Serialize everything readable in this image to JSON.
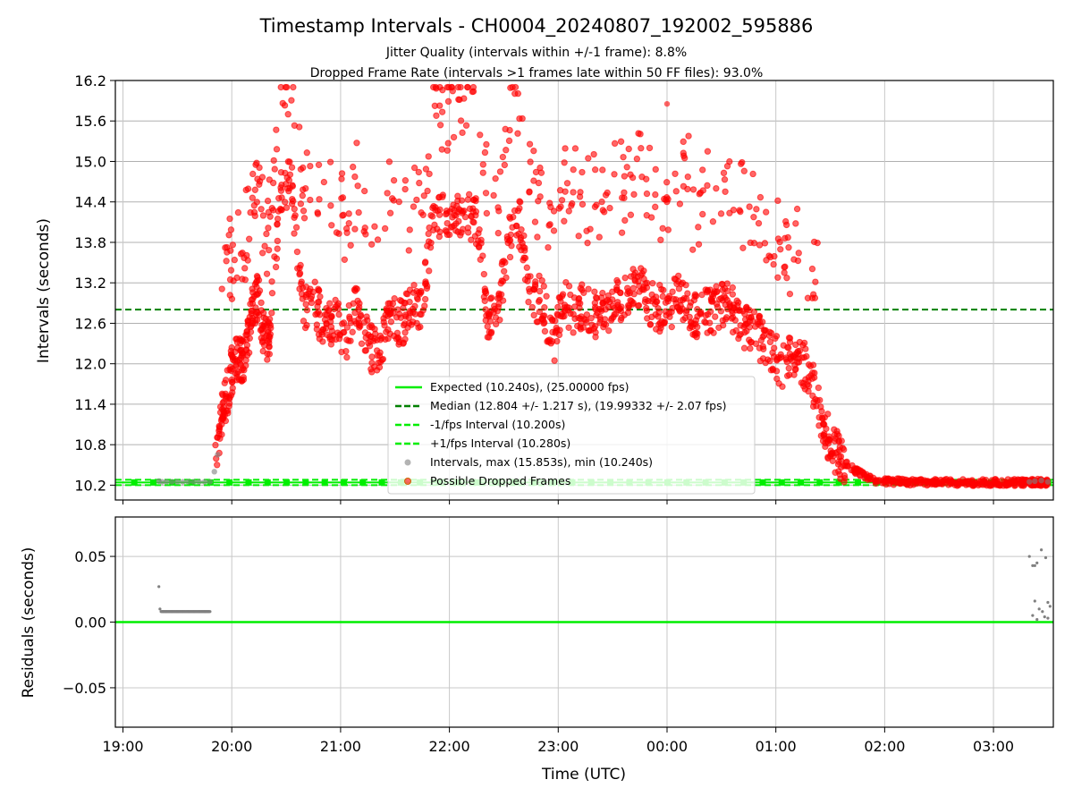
{
  "chart_data": [
    {
      "type": "scatter",
      "title": "Timestamp Intervals - CH0004_20240807_192002_595886",
      "subtitle_lines": [
        "Jitter Quality (intervals within +/-1 frame): 8.8%",
        "Dropped Frame Rate (intervals >1 frames late within 50 FF files): 93.0%"
      ],
      "ylabel": "Intervals (seconds)",
      "xlim": [
        -0.07,
        8.55
      ],
      "ylim": [
        9.98,
        16.2
      ],
      "yticks": [
        10.2,
        10.8,
        11.4,
        12.0,
        12.6,
        13.2,
        13.8,
        14.4,
        15.0,
        15.6,
        16.2
      ],
      "ytick_labels": [
        "10.2",
        "10.8",
        "11.4",
        "12.0",
        "12.6",
        "13.2",
        "13.8",
        "14.4",
        "15.0",
        "15.6",
        "16.2"
      ],
      "grid": true,
      "legend_position": "lower-center",
      "legend": [
        "Expected (10.240s), (25.00000 fps)",
        "Median (12.804 +/- 1.217 s), (19.99332 +/- 2.07 fps)",
        "-1/fps Interval (10.200s)",
        "+1/fps Interval (10.280s)",
        "Intervals, max (15.853s), min (10.240s)",
        "Possible Dropped Frames"
      ],
      "lines": [
        {
          "name": "Expected (10.240s), (25.00000 fps)",
          "y": 10.24,
          "color": "#00ee00",
          "style": "solid"
        },
        {
          "name": "Median (12.804 +/- 1.217 s), (19.99332 +/- 2.07 fps)",
          "y": 12.804,
          "color": "#008000",
          "style": "dashed"
        },
        {
          "name": "-1/fps Interval (10.200s)",
          "y": 10.2,
          "color": "#00ee00",
          "style": "dashed"
        },
        {
          "name": "+1/fps Interval (10.280s)",
          "y": 10.28,
          "color": "#00ee00",
          "style": "dashed"
        }
      ],
      "normal_intervals": {
        "name": "Intervals, max (15.853s), min (10.240s)",
        "color": "#808080",
        "x": [
          0.33,
          0.36,
          0.4,
          0.45,
          0.5,
          0.55,
          0.6,
          0.65,
          0.7,
          0.75,
          0.8,
          0.84,
          0.87,
          8.33,
          8.38,
          8.44,
          8.5
        ],
        "y": [
          10.26,
          10.25,
          10.25,
          10.25,
          10.25,
          10.25,
          10.25,
          10.25,
          10.25,
          10.25,
          10.25,
          10.4,
          10.65,
          10.25,
          10.26,
          10.27,
          10.25
        ]
      },
      "dropped_frames": {
        "name": "Possible Dropped Frames",
        "color": "#ff0000",
        "centerline_x_hours": [
          0.85,
          0.9,
          0.95,
          1.0,
          1.05,
          1.1,
          1.15,
          1.2,
          1.25,
          1.3,
          1.35,
          1.45,
          1.55,
          1.65,
          1.75,
          1.85,
          1.95,
          2.05,
          2.15,
          2.25,
          2.35,
          2.45,
          2.55,
          2.65,
          2.75,
          2.85,
          2.95,
          3.05,
          3.15,
          3.25,
          3.35,
          3.45,
          3.55,
          3.65,
          3.75,
          3.85,
          3.95,
          4.05,
          4.15,
          4.25,
          4.35,
          4.45,
          4.55,
          4.65,
          4.75,
          4.85,
          4.95,
          5.05,
          5.15,
          5.25,
          5.35,
          5.45,
          5.55,
          5.65,
          5.75,
          5.85,
          5.95,
          6.05,
          6.15,
          6.25,
          6.35,
          6.45,
          6.55,
          6.65,
          6.75,
          6.85,
          6.95,
          7.05,
          7.15,
          7.25,
          7.35,
          7.45,
          7.55,
          7.65,
          7.75,
          7.85,
          7.95,
          8.05,
          8.15,
          8.25,
          8.3,
          8.35,
          8.4,
          8.45,
          8.5
        ],
        "centerline_y": [
          10.5,
          11.2,
          11.5,
          11.9,
          12.1,
          12.0,
          12.4,
          12.9,
          13.0,
          12.3,
          12.5,
          14.6,
          14.7,
          12.8,
          13.0,
          12.5,
          12.7,
          12.4,
          12.9,
          12.3,
          12.1,
          12.7,
          12.6,
          12.8,
          12.9,
          14.1,
          14.2,
          14.3,
          14.2,
          14.1,
          12.7,
          12.8,
          13.9,
          14.1,
          12.9,
          13.0,
          12.3,
          12.9,
          12.8,
          12.9,
          12.7,
          12.8,
          12.9,
          13.0,
          13.2,
          12.9,
          12.8,
          12.9,
          13.0,
          12.7,
          12.8,
          12.8,
          12.9,
          12.7,
          12.5,
          12.4,
          12.2,
          12.0,
          12.1,
          12.0,
          11.7,
          11.0,
          10.7,
          10.5,
          10.4,
          10.3,
          10.26,
          10.25,
          10.25,
          10.24,
          10.24,
          10.24,
          10.24,
          10.24,
          10.24,
          10.24,
          10.24,
          10.24,
          10.24,
          10.24,
          10.24,
          10.24,
          10.24,
          10.24,
          10.24
        ],
        "max": 15.853
      },
      "max_point": {
        "x": 5.0,
        "y": 15.853
      }
    },
    {
      "type": "scatter",
      "ylabel": "Residuals (seconds)",
      "xlabel": "Time (UTC)",
      "xlim": [
        -0.07,
        8.55
      ],
      "ylim": [
        -0.08,
        0.08
      ],
      "yticks": [
        -0.05,
        0.0,
        0.05
      ],
      "ytick_labels": [
        "−0.05",
        "0.00",
        "0.05"
      ],
      "xticks": [
        0,
        1,
        2,
        3,
        4,
        5,
        6,
        7,
        8
      ],
      "xtick_labels": [
        "19:00",
        "20:00",
        "21:00",
        "22:00",
        "23:00",
        "00:00",
        "01:00",
        "02:00",
        "03:00"
      ],
      "grid": true,
      "zero_line": {
        "y": 0.0,
        "color": "#00ee00"
      },
      "residuals": {
        "color": "#808080",
        "x": [
          0.33,
          0.34,
          0.35,
          0.37,
          0.4,
          0.45,
          0.5,
          0.55,
          0.6,
          0.65,
          0.7,
          0.75,
          0.8,
          8.33,
          8.36,
          8.38,
          8.4,
          8.44,
          8.48,
          8.5,
          8.52,
          8.36,
          8.4,
          8.45,
          8.5,
          8.38,
          8.42,
          8.47
        ],
        "y": [
          0.027,
          0.01,
          0.008,
          0.008,
          0.008,
          0.008,
          0.008,
          0.008,
          0.008,
          0.008,
          0.008,
          0.008,
          0.008,
          0.05,
          0.043,
          0.043,
          0.045,
          0.055,
          0.049,
          0.015,
          0.012,
          0.005,
          0.002,
          0.008,
          0.003,
          0.016,
          0.01,
          0.004
        ]
      }
    }
  ]
}
